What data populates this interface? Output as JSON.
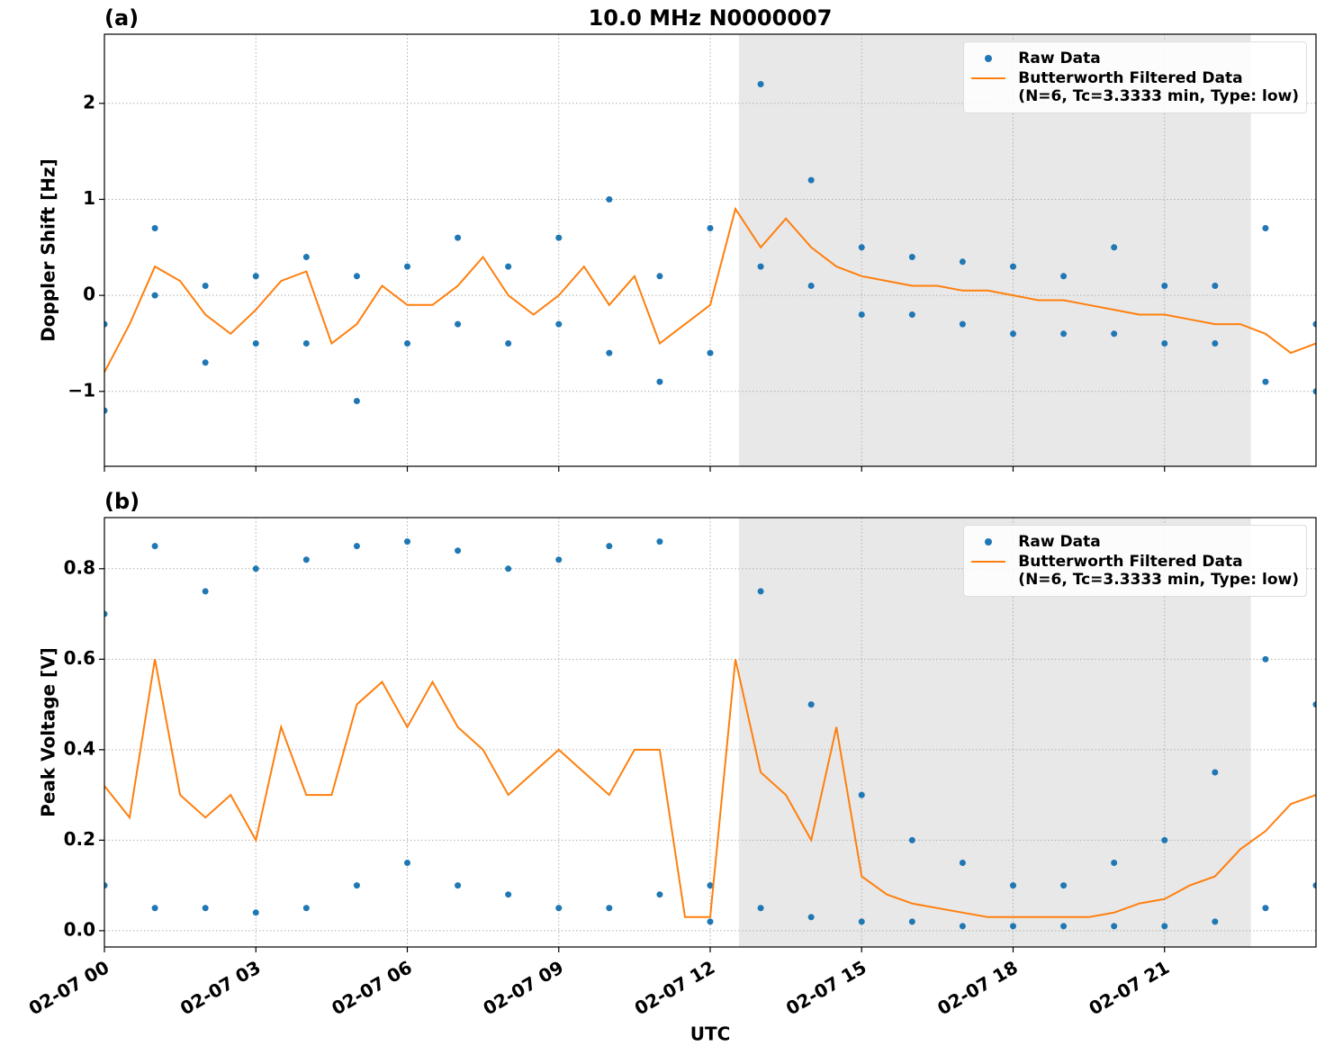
{
  "chart_data": [
    {
      "type": "line",
      "title": "10.0 MHz N0000007",
      "panel_label": "(a)",
      "ylabel": "Doppler Shift [Hz]",
      "xlim": [
        0,
        24
      ],
      "xticks": [
        0,
        3,
        6,
        9,
        12,
        15,
        18,
        21
      ],
      "ylim": [
        -1.78,
        2.72
      ],
      "yticks": [
        {
          "value": -1,
          "label": "−1"
        },
        0,
        1,
        2
      ],
      "grid": true,
      "legend": "upper right",
      "shaded_span": [
        12.57,
        22.71
      ],
      "shade_color": "#e8e8e8",
      "series": [
        {
          "name": "Raw Data",
          "style": "scatter",
          "color": "#1f77b4",
          "x": [
            0,
            0,
            1,
            1,
            2,
            2,
            3,
            3,
            4,
            4,
            5,
            5,
            6,
            6,
            7,
            7,
            8,
            8,
            9,
            9,
            10,
            10,
            11,
            11,
            12,
            12,
            13,
            13,
            14,
            14,
            15,
            15,
            16,
            16,
            17,
            17,
            18,
            18,
            19,
            19,
            20,
            20,
            21,
            21,
            22,
            22,
            23,
            23,
            24,
            24
          ],
          "values": [
            -1.2,
            -0.3,
            0,
            0.7,
            -0.7,
            0.1,
            -0.5,
            0.2,
            -0.5,
            0.4,
            -1.1,
            0.2,
            -0.5,
            0.3,
            -0.3,
            0.6,
            -0.5,
            0.3,
            -0.3,
            0.6,
            -0.6,
            1.0,
            -0.9,
            0.2,
            -0.6,
            0.7,
            0.3,
            2.2,
            0.1,
            1.2,
            -0.2,
            0.5,
            -0.2,
            0.4,
            -0.3,
            0.35,
            -0.4,
            0.3,
            -0.4,
            0.2,
            -0.4,
            0.5,
            -0.5,
            0.1,
            -0.5,
            0.1,
            -0.9,
            0.7,
            -1.0,
            -0.3
          ]
        },
        {
          "name": "Butterworth Filtered Data\n(N=6, Tc=3.3333 min, Type: low)",
          "style": "line",
          "color": "#ff7f0e",
          "x": [
            0,
            0.5,
            1,
            1.5,
            2,
            2.5,
            3,
            3.5,
            4,
            4.5,
            5,
            5.5,
            6,
            6.5,
            7,
            7.5,
            8,
            8.5,
            9,
            9.5,
            10,
            10.5,
            11,
            11.5,
            12,
            12.5,
            13,
            13.5,
            14,
            14.5,
            15,
            15.5,
            16,
            16.5,
            17,
            17.5,
            18,
            18.5,
            19,
            19.5,
            20,
            20.5,
            21,
            21.5,
            22,
            22.5,
            23,
            23.5,
            24
          ],
          "values": [
            -0.8,
            -0.3,
            0.3,
            0.15,
            -0.2,
            -0.4,
            -0.15,
            0.15,
            0.25,
            -0.5,
            -0.3,
            0.1,
            -0.1,
            -0.1,
            0.1,
            0.4,
            0,
            -0.2,
            0,
            0.3,
            -0.1,
            0.2,
            -0.5,
            -0.3,
            -0.1,
            0.9,
            0.5,
            0.8,
            0.5,
            0.3,
            0.2,
            0.15,
            0.1,
            0.1,
            0.05,
            0.05,
            0,
            -0.05,
            -0.05,
            -0.1,
            -0.15,
            -0.2,
            -0.2,
            -0.25,
            -0.3,
            -0.3,
            -0.4,
            -0.6,
            -0.5
          ]
        }
      ]
    },
    {
      "type": "line",
      "panel_label": "(b)",
      "ylabel": "Peak Voltage [V]",
      "xlabel": "UTC",
      "xlim": [
        0,
        24
      ],
      "xticks": [
        {
          "value": 0,
          "label": "02-07 00"
        },
        {
          "value": 3,
          "label": "02-07 03"
        },
        {
          "value": 6,
          "label": "02-07 06"
        },
        {
          "value": 9,
          "label": "02-07 09"
        },
        {
          "value": 12,
          "label": "02-07 12"
        },
        {
          "value": 15,
          "label": "02-07 15"
        },
        {
          "value": 18,
          "label": "02-07 18"
        },
        {
          "value": 21,
          "label": "02-07 21"
        }
      ],
      "ylim": [
        -0.036,
        0.913
      ],
      "yticks": [
        {
          "value": 0,
          "label": "0.0"
        },
        0.2,
        0.4,
        0.6,
        0.8
      ],
      "grid": true,
      "legend": "upper right",
      "shaded_span": [
        12.57,
        22.71
      ],
      "shade_color": "#e8e8e8",
      "series": [
        {
          "name": "Raw Data",
          "style": "scatter",
          "color": "#1f77b4",
          "x": [
            0,
            0,
            1,
            1,
            2,
            2,
            3,
            3,
            4,
            4,
            5,
            5,
            6,
            6,
            7,
            7,
            8,
            8,
            9,
            9,
            10,
            10,
            11,
            11,
            12,
            12,
            13,
            13,
            14,
            14,
            15,
            15,
            16,
            16,
            17,
            17,
            18,
            18,
            19,
            19,
            20,
            20,
            21,
            21,
            22,
            22,
            23,
            23,
            24,
            24
          ],
          "values": [
            0.1,
            0.7,
            0.05,
            0.85,
            0.05,
            0.75,
            0.04,
            0.8,
            0.05,
            0.82,
            0.1,
            0.85,
            0.15,
            0.86,
            0.1,
            0.84,
            0.08,
            0.8,
            0.05,
            0.82,
            0.05,
            0.85,
            0.08,
            0.86,
            0.02,
            0.1,
            0.05,
            0.75,
            0.03,
            0.5,
            0.02,
            0.3,
            0.02,
            0.2,
            0.01,
            0.15,
            0.01,
            0.1,
            0.01,
            0.1,
            0.01,
            0.15,
            0.01,
            0.2,
            0.02,
            0.35,
            0.05,
            0.6,
            0.1,
            0.5
          ]
        },
        {
          "name": "Butterworth Filtered Data\n(N=6, Tc=3.3333 min, Type: low)",
          "style": "line",
          "color": "#ff7f0e",
          "x": [
            0,
            0.5,
            1,
            1.5,
            2,
            2.5,
            3,
            3.5,
            4,
            4.5,
            5,
            5.5,
            6,
            6.5,
            7,
            7.5,
            8,
            8.5,
            9,
            9.5,
            10,
            10.5,
            11,
            11.5,
            12,
            12.5,
            13,
            13.5,
            14,
            14.5,
            15,
            15.5,
            16,
            16.5,
            17,
            17.5,
            18,
            18.5,
            19,
            19.5,
            20,
            20.5,
            21,
            21.5,
            22,
            22.5,
            23,
            23.5,
            24
          ],
          "values": [
            0.32,
            0.25,
            0.6,
            0.3,
            0.25,
            0.3,
            0.2,
            0.45,
            0.3,
            0.3,
            0.5,
            0.55,
            0.45,
            0.55,
            0.45,
            0.4,
            0.3,
            0.35,
            0.4,
            0.35,
            0.3,
            0.4,
            0.4,
            0.03,
            0.03,
            0.6,
            0.35,
            0.3,
            0.2,
            0.45,
            0.12,
            0.08,
            0.06,
            0.05,
            0.04,
            0.03,
            0.03,
            0.03,
            0.03,
            0.03,
            0.04,
            0.06,
            0.07,
            0.1,
            0.12,
            0.18,
            0.22,
            0.28,
            0.3
          ]
        }
      ]
    }
  ]
}
